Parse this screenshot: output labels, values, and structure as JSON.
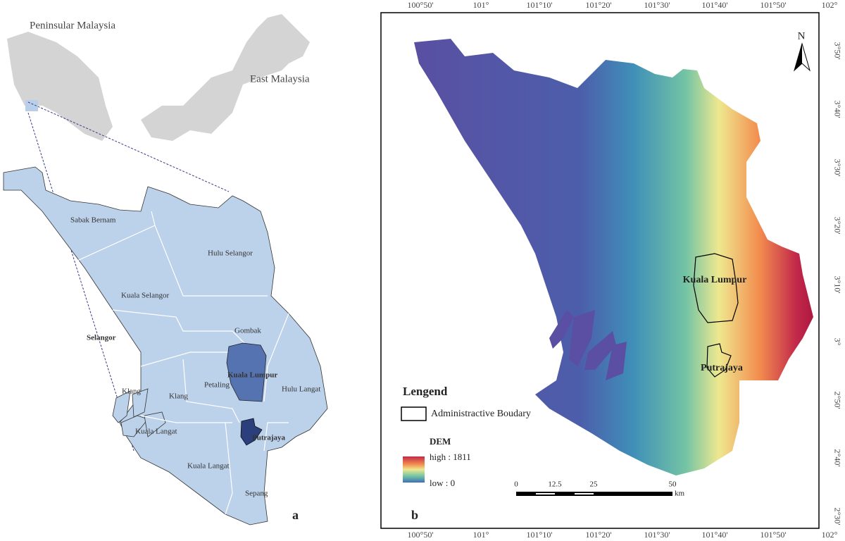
{
  "panel_a": {
    "inset_labels": [
      "Peninsular Malaysia",
      "East Malaysia"
    ],
    "district_labels": [
      "Sabak Bernam",
      "Hulu Selangor",
      "Kuala Selangor",
      "Selangor",
      "Gombak",
      "Kuala Lumpur",
      "Petaling",
      "Klang",
      "Klang",
      "Hulu Langat",
      "Putrajaya",
      "Kuala Langat",
      "Kuala Langat",
      "Sepang"
    ],
    "panel_label": "a"
  },
  "panel_b": {
    "top_ticks": [
      "100°50'",
      "101°",
      "101°10'",
      "101°20'",
      "101°30'",
      "101°40'",
      "101°50'",
      "102°"
    ],
    "bottom_ticks": [
      "100°50'",
      "101°",
      "101°10'",
      "101°20'",
      "101°30'",
      "101°40'",
      "101°50'",
      "102°"
    ],
    "right_ticks": [
      "3°50'",
      "3°40'",
      "3°30'",
      "3°20'",
      "3°10'",
      "3°",
      "2°50'",
      "2°40'",
      "2°30'"
    ],
    "north": "N",
    "boundary_labels": [
      "Kuala Lumpur",
      "Putrajaya"
    ],
    "legend": {
      "title": "Lengend",
      "boundary": "Administractive Boudary",
      "dem_title": "DEM",
      "high": "high : 1811",
      "low": "low : 0"
    },
    "scale": {
      "labels": [
        "0",
        "12.5",
        "25",
        "50"
      ],
      "unit": "km"
    },
    "panel_label": "b"
  }
}
